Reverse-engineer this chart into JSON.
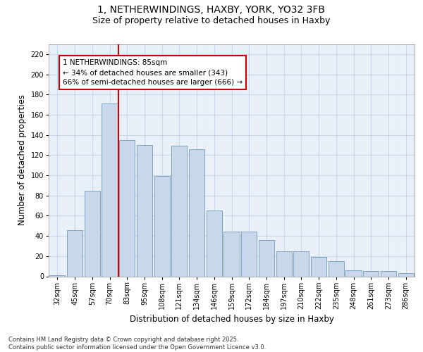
{
  "title_line1": "1, NETHERWINDINGS, HAXBY, YORK, YO32 3FB",
  "title_line2": "Size of property relative to detached houses in Haxby",
  "xlabel": "Distribution of detached houses by size in Haxby",
  "ylabel": "Number of detached properties",
  "categories": [
    "32sqm",
    "45sqm",
    "57sqm",
    "70sqm",
    "83sqm",
    "95sqm",
    "108sqm",
    "121sqm",
    "134sqm",
    "146sqm",
    "159sqm",
    "172sqm",
    "184sqm",
    "197sqm",
    "210sqm",
    "222sqm",
    "235sqm",
    "248sqm",
    "261sqm",
    "273sqm",
    "286sqm"
  ],
  "values": [
    1,
    46,
    85,
    171,
    135,
    130,
    99,
    129,
    126,
    65,
    44,
    44,
    36,
    25,
    25,
    19,
    15,
    6,
    5,
    5,
    3
  ],
  "bar_color": "#c8d8ea",
  "bar_edge_color": "#5a8ab5",
  "grid_color": "#c8d8ea",
  "bg_color": "#eaf0f8",
  "vline_color": "#cc0000",
  "vline_pos": 3.5,
  "annotation_text": "1 NETHERWINDINGS: 85sqm\n← 34% of detached houses are smaller (343)\n66% of semi-detached houses are larger (666) →",
  "annotation_box_color": "#ffffff",
  "annotation_box_edge_color": "#cc0000",
  "ylim": [
    0,
    230
  ],
  "yticks": [
    0,
    20,
    40,
    60,
    80,
    100,
    120,
    140,
    160,
    180,
    200,
    220
  ],
  "footer_text": "Contains HM Land Registry data © Crown copyright and database right 2025.\nContains public sector information licensed under the Open Government Licence v3.0.",
  "title_fontsize": 10,
  "subtitle_fontsize": 9,
  "axis_label_fontsize": 8.5,
  "tick_fontsize": 7,
  "annotation_fontsize": 7.5,
  "footer_fontsize": 6
}
